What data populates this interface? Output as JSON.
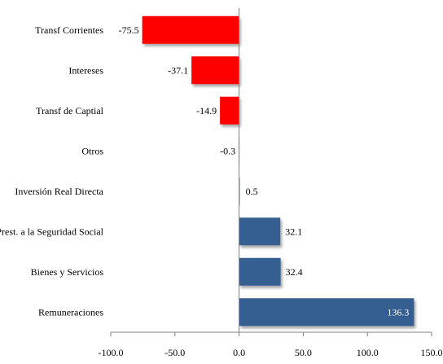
{
  "chart_data": {
    "type": "bar",
    "orientation": "horizontal",
    "categories": [
      "Transf Corrientes",
      "Intereses",
      "Transf de Captial",
      "Otros",
      "Inversión Real Directa",
      "Prest. a la Seguridad Social",
      "Bienes y Servicios",
      "Remuneraciones"
    ],
    "values": [
      -75.5,
      -37.1,
      -14.9,
      -0.3,
      0.5,
      32.1,
      32.4,
      136.3
    ],
    "labels": [
      "-75.5",
      "-37.1",
      "-14.9",
      "-0.3",
      "0.5",
      "32.1",
      "32.4",
      "136.3"
    ],
    "xlim": [
      -100,
      150
    ],
    "xticks": [
      -100,
      -50,
      0,
      50,
      100,
      150
    ],
    "xtick_labels": [
      "-100.0",
      "-50.0",
      "0.0",
      "50.0",
      "100.0",
      "150.0"
    ],
    "colors": {
      "negative": "#ff0000",
      "positive": "#365f91"
    },
    "grid": false,
    "legend": "none"
  }
}
